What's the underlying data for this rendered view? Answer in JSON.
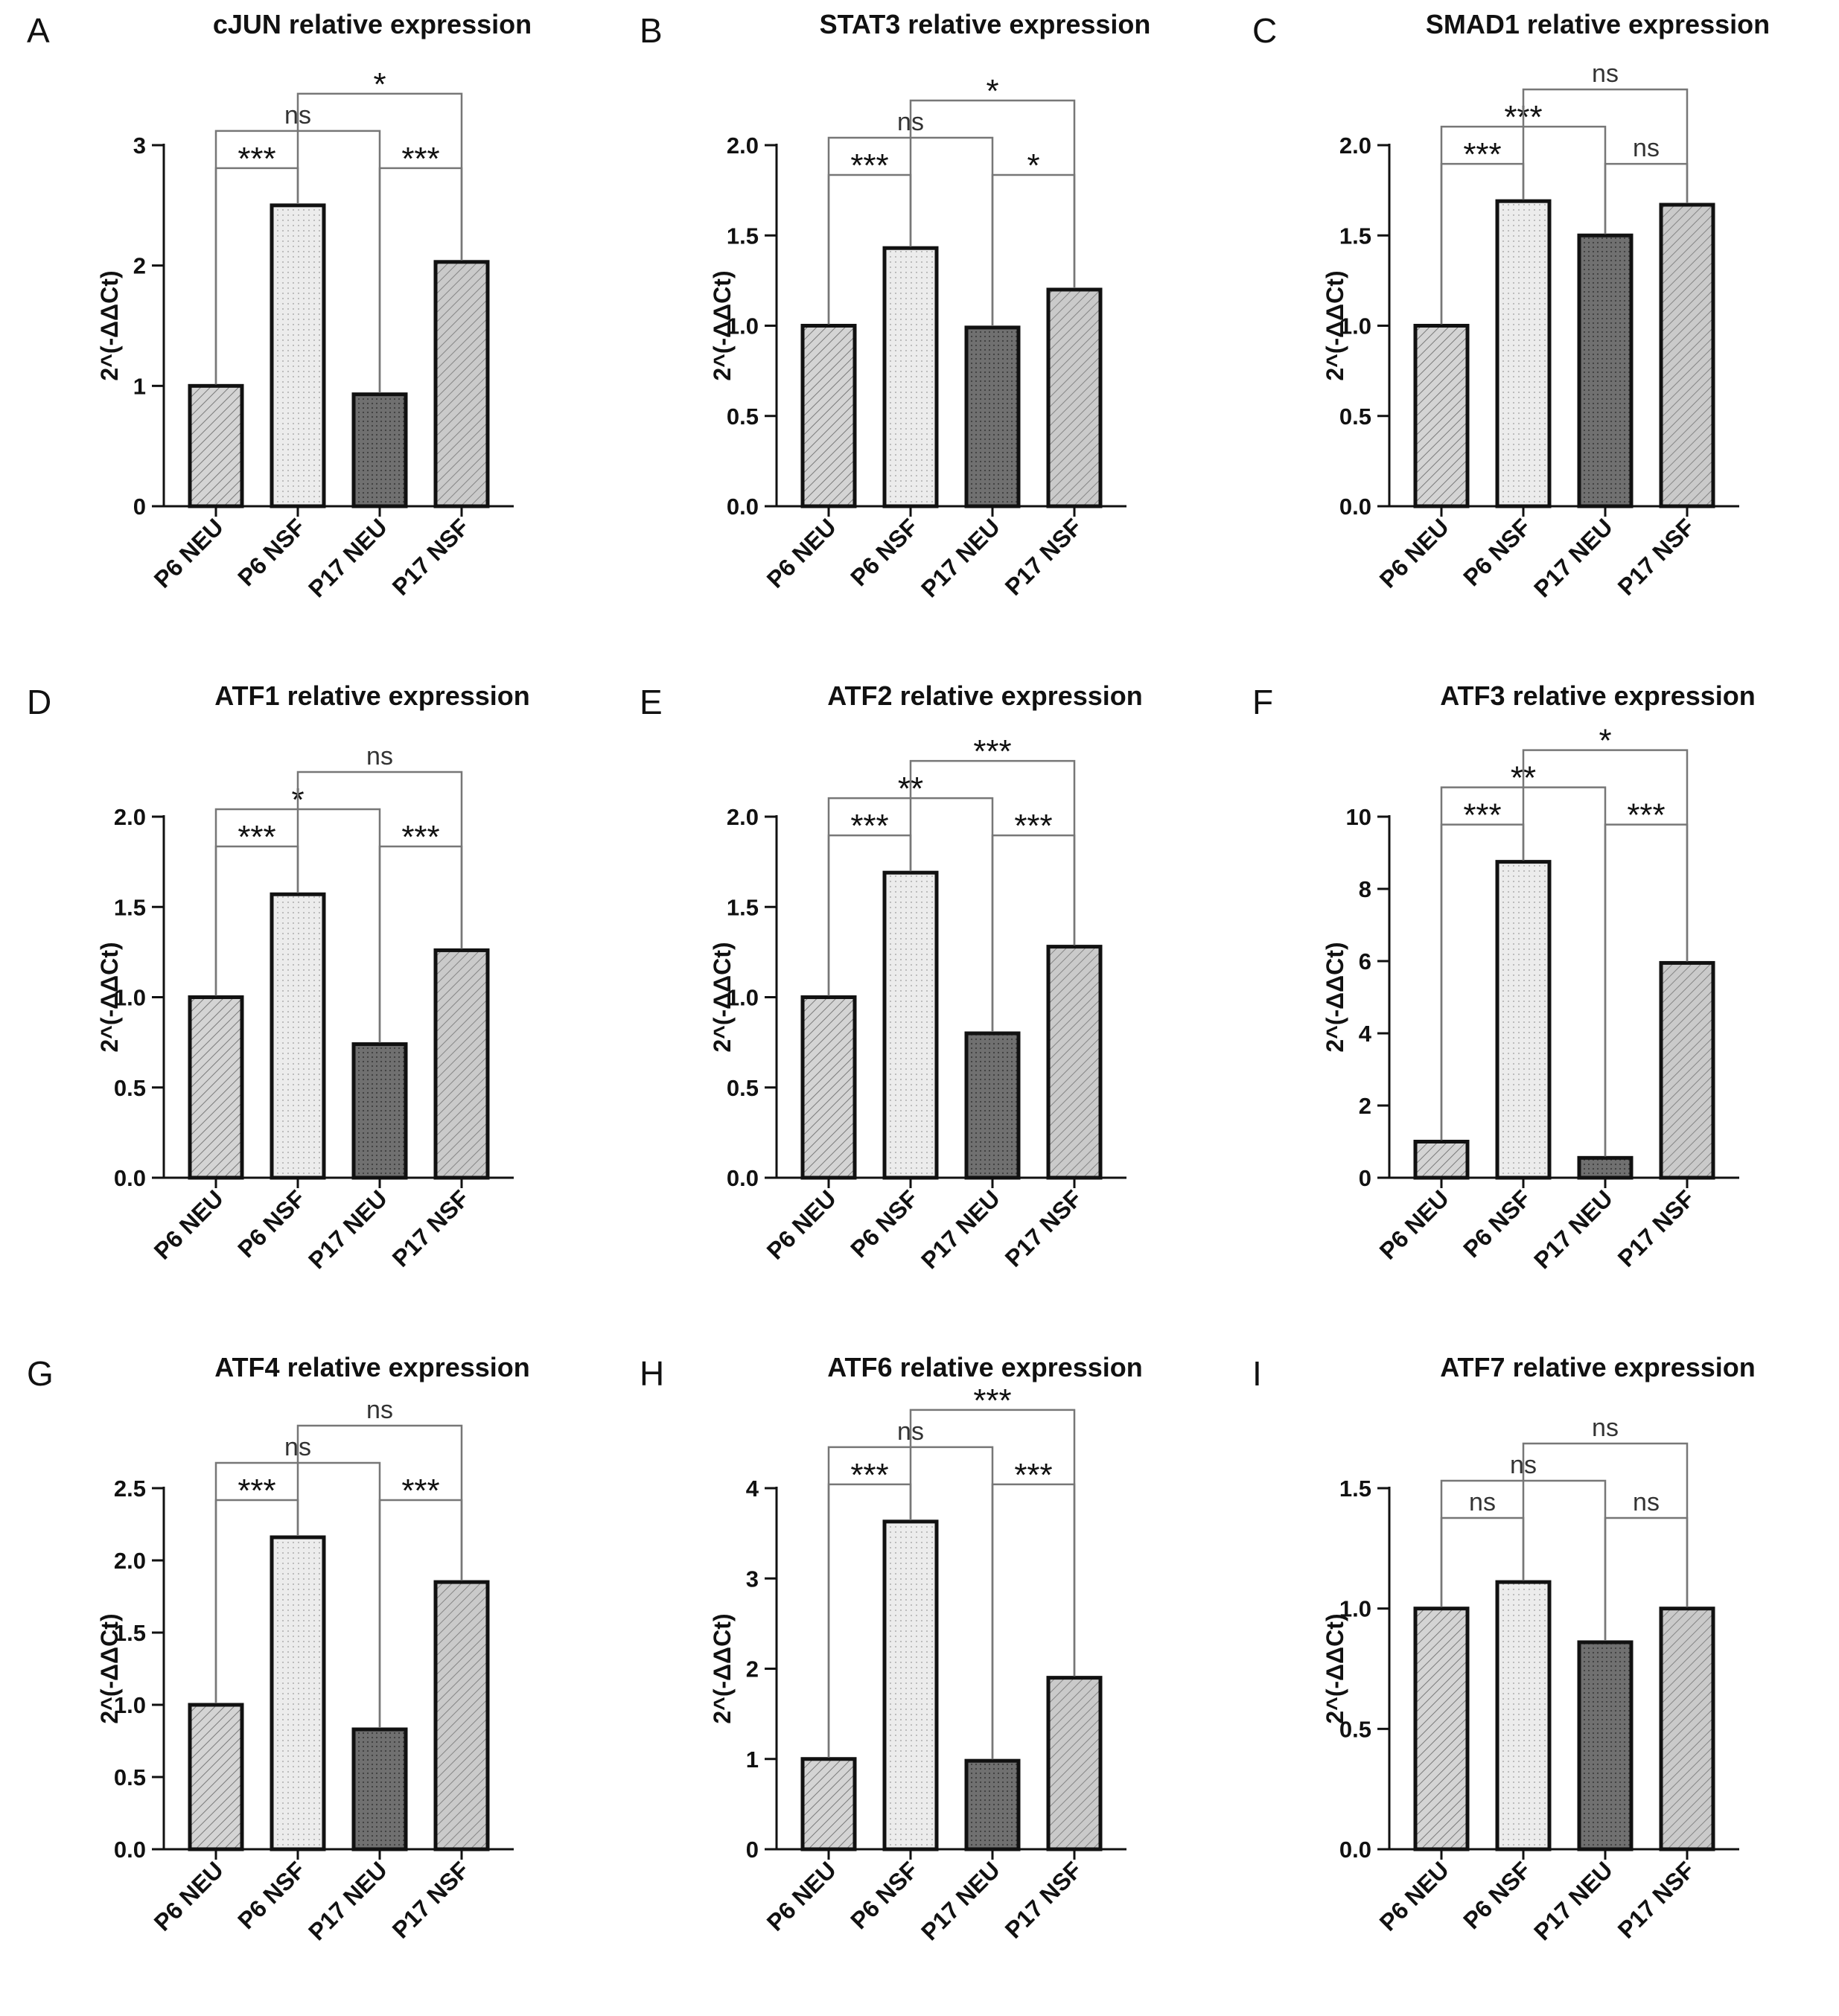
{
  "chart_data": [
    {
      "panel": "A",
      "type": "bar",
      "title": "cJUN relative expression",
      "ylabel": "2^(-ΔΔCt)",
      "categories": [
        "P6 NEU",
        "P6 NSF",
        "P17 NEU",
        "P17 NSF"
      ],
      "values": [
        1.0,
        2.5,
        0.93,
        2.03
      ],
      "ylim": [
        0,
        3
      ],
      "yticks": [
        "0",
        "1",
        "2",
        "3"
      ],
      "significance": [
        {
          "from": 0,
          "to": 1,
          "label": "***"
        },
        {
          "from": 2,
          "to": 3,
          "label": "***"
        },
        {
          "from": 0,
          "to": 2,
          "label": "ns"
        },
        {
          "from": 1,
          "to": 3,
          "label": "*"
        }
      ]
    },
    {
      "panel": "B",
      "type": "bar",
      "title": "STAT3 relative expression",
      "ylabel": "2^(-ΔΔCt)",
      "categories": [
        "P6 NEU",
        "P6 NSF",
        "P17 NEU",
        "P17 NSF"
      ],
      "values": [
        1.0,
        1.43,
        0.99,
        1.2
      ],
      "ylim": [
        0,
        2
      ],
      "yticks": [
        "0.0",
        "0.5",
        "1.0",
        "1.5",
        "2.0"
      ],
      "significance": [
        {
          "from": 0,
          "to": 1,
          "label": "***"
        },
        {
          "from": 2,
          "to": 3,
          "label": "*"
        },
        {
          "from": 0,
          "to": 2,
          "label": "ns"
        },
        {
          "from": 1,
          "to": 3,
          "label": "*"
        }
      ]
    },
    {
      "panel": "C",
      "type": "bar",
      "title": "SMAD1 relative expression",
      "ylabel": "2^(-ΔΔCt)",
      "categories": [
        "P6 NEU",
        "P6 NSF",
        "P17 NEU",
        "P17 NSF"
      ],
      "values": [
        1.0,
        1.69,
        1.5,
        1.67
      ],
      "ylim": [
        0,
        2
      ],
      "yticks": [
        "0.0",
        "0.5",
        "1.0",
        "1.5",
        "2.0"
      ],
      "significance": [
        {
          "from": 0,
          "to": 1,
          "label": "***"
        },
        {
          "from": 2,
          "to": 3,
          "label": "ns"
        },
        {
          "from": 0,
          "to": 2,
          "label": "***"
        },
        {
          "from": 1,
          "to": 3,
          "label": "ns"
        }
      ]
    },
    {
      "panel": "D",
      "type": "bar",
      "title": "ATF1 relative expression",
      "ylabel": "2^(-ΔΔCt)",
      "categories": [
        "P6 NEU",
        "P6 NSF",
        "P17 NEU",
        "P17 NSF"
      ],
      "values": [
        1.0,
        1.57,
        0.74,
        1.26
      ],
      "ylim": [
        0,
        2
      ],
      "yticks": [
        "0.0",
        "0.5",
        "1.0",
        "1.5",
        "2.0"
      ],
      "significance": [
        {
          "from": 0,
          "to": 1,
          "label": "***"
        },
        {
          "from": 2,
          "to": 3,
          "label": "***"
        },
        {
          "from": 0,
          "to": 2,
          "label": "*"
        },
        {
          "from": 1,
          "to": 3,
          "label": "ns"
        }
      ]
    },
    {
      "panel": "E",
      "type": "bar",
      "title": "ATF2 relative expression",
      "ylabel": "2^(-ΔΔCt)",
      "categories": [
        "P6 NEU",
        "P6 NSF",
        "P17 NEU",
        "P17 NSF"
      ],
      "values": [
        1.0,
        1.69,
        0.8,
        1.28
      ],
      "ylim": [
        0,
        2
      ],
      "yticks": [
        "0.0",
        "0.5",
        "1.0",
        "1.5",
        "2.0"
      ],
      "significance": [
        {
          "from": 0,
          "to": 1,
          "label": "***"
        },
        {
          "from": 2,
          "to": 3,
          "label": "***"
        },
        {
          "from": 0,
          "to": 2,
          "label": "**"
        },
        {
          "from": 1,
          "to": 3,
          "label": "***"
        }
      ]
    },
    {
      "panel": "F",
      "type": "bar",
      "title": "ATF3 relative expression",
      "ylabel": "2^(-ΔΔCt)",
      "categories": [
        "P6 NEU",
        "P6 NSF",
        "P17 NEU",
        "P17 NSF"
      ],
      "values": [
        1.0,
        8.75,
        0.55,
        5.95
      ],
      "ylim": [
        0,
        10
      ],
      "yticks": [
        "0",
        "2",
        "4",
        "6",
        "8",
        "10"
      ],
      "significance": [
        {
          "from": 0,
          "to": 1,
          "label": "***"
        },
        {
          "from": 2,
          "to": 3,
          "label": "***"
        },
        {
          "from": 0,
          "to": 2,
          "label": "**"
        },
        {
          "from": 1,
          "to": 3,
          "label": "*"
        }
      ]
    },
    {
      "panel": "G",
      "type": "bar",
      "title": "ATF4 relative expression",
      "ylabel": "2^(-ΔΔCt)",
      "categories": [
        "P6 NEU",
        "P6 NSF",
        "P17 NEU",
        "P17 NSF"
      ],
      "values": [
        1.0,
        2.16,
        0.83,
        1.85
      ],
      "ylim": [
        0,
        2.5
      ],
      "yticks": [
        "0.0",
        "0.5",
        "1.0",
        "1.5",
        "2.0",
        "2.5"
      ],
      "significance": [
        {
          "from": 0,
          "to": 1,
          "label": "***"
        },
        {
          "from": 2,
          "to": 3,
          "label": "***"
        },
        {
          "from": 0,
          "to": 2,
          "label": "ns"
        },
        {
          "from": 1,
          "to": 3,
          "label": "ns"
        }
      ]
    },
    {
      "panel": "H",
      "type": "bar",
      "title": "ATF6 relative expression",
      "ylabel": "2^(-ΔΔCt)",
      "categories": [
        "P6 NEU",
        "P6 NSF",
        "P17 NEU",
        "P17 NSF"
      ],
      "values": [
        1.0,
        3.63,
        0.98,
        1.9
      ],
      "ylim": [
        0,
        4
      ],
      "yticks": [
        "0",
        "1",
        "2",
        "3",
        "4"
      ],
      "significance": [
        {
          "from": 0,
          "to": 1,
          "label": "***"
        },
        {
          "from": 2,
          "to": 3,
          "label": "***"
        },
        {
          "from": 0,
          "to": 2,
          "label": "ns"
        },
        {
          "from": 1,
          "to": 3,
          "label": "***"
        }
      ]
    },
    {
      "panel": "I",
      "type": "bar",
      "title": "ATF7 relative expression",
      "ylabel": "2^(-ΔΔCt)",
      "categories": [
        "P6 NEU",
        "P6 NSF",
        "P17 NEU",
        "P17 NSF"
      ],
      "values": [
        1.0,
        1.11,
        0.86,
        1.0
      ],
      "ylim": [
        0,
        1.5
      ],
      "yticks": [
        "0.0",
        "0.5",
        "1.0",
        "1.5"
      ],
      "significance": [
        {
          "from": 0,
          "to": 1,
          "label": "ns"
        },
        {
          "from": 2,
          "to": 3,
          "label": "ns"
        },
        {
          "from": 0,
          "to": 2,
          "label": "ns"
        },
        {
          "from": 1,
          "to": 3,
          "label": "ns"
        }
      ]
    }
  ],
  "bar_styles": [
    {
      "fill": "#d4d4d4",
      "pattern": "diagonal-hatch"
    },
    {
      "fill": "#ececec",
      "pattern": "dots"
    },
    {
      "fill": "#707070",
      "pattern": "dark-dots"
    },
    {
      "fill": "#cacaca",
      "pattern": "diagonal-hatch"
    }
  ]
}
